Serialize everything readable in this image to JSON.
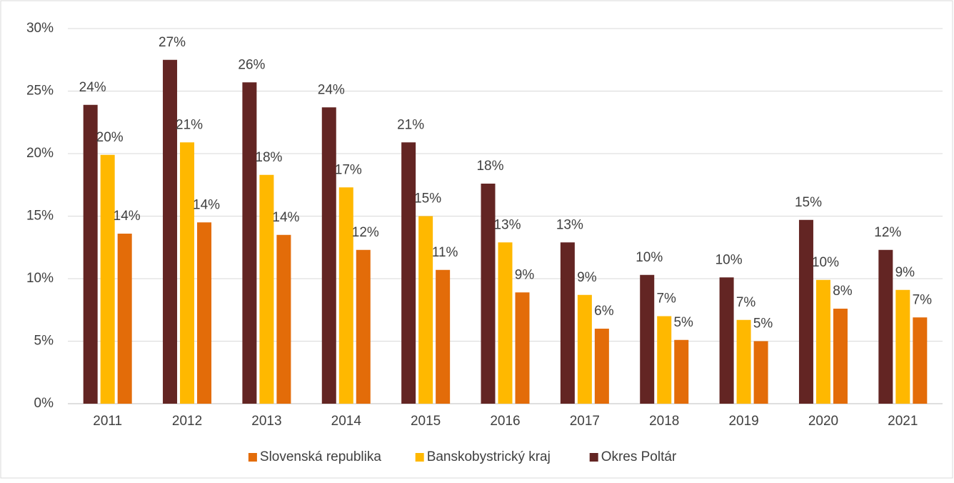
{
  "chart_data": {
    "type": "bar",
    "categories": [
      "2011",
      "2012",
      "2013",
      "2014",
      "2015",
      "2016",
      "2017",
      "2018",
      "2019",
      "2020",
      "2021"
    ],
    "series": [
      {
        "name": "Okres Poltár",
        "color": "#632523",
        "values": [
          23.9,
          27.5,
          25.7,
          23.7,
          20.9,
          17.6,
          12.9,
          10.3,
          10.1,
          14.7,
          12.3
        ],
        "value_labels": [
          "24%",
          "27%",
          "26%",
          "24%",
          "21%",
          "18%",
          "13%",
          "10%",
          "10%",
          "15%",
          "12%"
        ]
      },
      {
        "name": "Banskobystrický kraj",
        "color": "#FFB800",
        "values": [
          19.9,
          20.9,
          18.3,
          17.3,
          15.0,
          12.9,
          8.7,
          7.0,
          6.7,
          9.9,
          9.1
        ],
        "value_labels": [
          "20%",
          "21%",
          "18%",
          "17%",
          "15%",
          "13%",
          "9%",
          "7%",
          "7%",
          "10%",
          "9%"
        ]
      },
      {
        "name": "Slovenská republika",
        "color": "#E36C09",
        "values": [
          13.6,
          14.5,
          13.5,
          12.3,
          10.7,
          8.9,
          6.0,
          5.1,
          5.0,
          7.6,
          6.9
        ],
        "value_labels": [
          "14%",
          "14%",
          "14%",
          "12%",
          "11%",
          "9%",
          "6%",
          "5%",
          "5%",
          "8%",
          "7%"
        ]
      }
    ],
    "legend_order": [
      "Slovenská republika",
      "Banskobystrický kraj",
      "Okres Poltár"
    ],
    "ylim": [
      0,
      30
    ],
    "yticks": [
      {
        "value": 0,
        "label": "0%"
      },
      {
        "value": 5,
        "label": "5%"
      },
      {
        "value": 10,
        "label": "10%"
      },
      {
        "value": 15,
        "label": "15%"
      },
      {
        "value": 20,
        "label": "20%"
      },
      {
        "value": 25,
        "label": "25%"
      },
      {
        "value": 30,
        "label": "30%"
      }
    ],
    "grid": true,
    "legend": "bottom"
  }
}
